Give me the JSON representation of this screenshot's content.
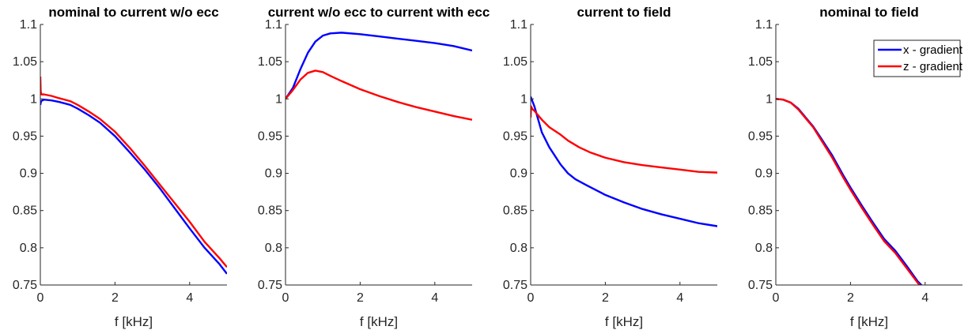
{
  "chart_data": [
    {
      "type": "line",
      "title": "nominal to current w/o ecc",
      "xlabel": "f [kHz]",
      "ylabel": "",
      "xlim": [
        0,
        5
      ],
      "ylim": [
        0.75,
        1.1
      ],
      "xticks": [
        0,
        2,
        4
      ],
      "yticks": [
        0.75,
        0.8,
        0.85,
        0.9,
        0.95,
        1,
        1.05,
        1.1
      ],
      "ytick_labels": [
        "0.75",
        "0.8",
        "0.85",
        "0.9",
        "0.95",
        "1",
        "1.05",
        "1.1"
      ],
      "series": [
        {
          "name": "x - gradient",
          "color": "#0000ff",
          "x": [
            0,
            0.02,
            0.1,
            0.3,
            0.5,
            0.8,
            1.0,
            1.3,
            1.6,
            2.0,
            2.4,
            2.8,
            3.2,
            3.6,
            4.0,
            4.4,
            4.8,
            5.0
          ],
          "y": [
            0.992,
            0.997,
            0.999,
            0.998,
            0.996,
            0.992,
            0.987,
            0.978,
            0.968,
            0.95,
            0.928,
            0.905,
            0.88,
            0.853,
            0.826,
            0.8,
            0.778,
            0.765
          ]
        },
        {
          "name": "z - gradient",
          "color": "#ff0000",
          "x": [
            0,
            0.01,
            0.03,
            0.1,
            0.3,
            0.5,
            0.8,
            1.0,
            1.3,
            1.6,
            2.0,
            2.4,
            2.8,
            3.2,
            3.6,
            4.0,
            4.4,
            4.8,
            5.0
          ],
          "y": [
            1.03,
            1.01,
            1.006,
            1.006,
            1.004,
            1.001,
            0.997,
            0.992,
            0.983,
            0.973,
            0.956,
            0.934,
            0.91,
            0.885,
            0.86,
            0.835,
            0.808,
            0.786,
            0.774
          ]
        }
      ]
    },
    {
      "type": "line",
      "title": "current w/o ecc to current with ecc",
      "xlabel": "f [kHz]",
      "ylabel": "",
      "xlim": [
        0,
        5
      ],
      "ylim": [
        0.75,
        1.1
      ],
      "xticks": [
        0,
        2,
        4
      ],
      "yticks": [
        0.75,
        0.8,
        0.85,
        0.9,
        0.95,
        1,
        1.05,
        1.1
      ],
      "ytick_labels": [
        "0.75",
        "0.8",
        "0.85",
        "0.9",
        "0.95",
        "1",
        "1.05",
        "1.1"
      ],
      "series": [
        {
          "name": "x - gradient",
          "color": "#0000ff",
          "x": [
            0,
            0.2,
            0.4,
            0.6,
            0.8,
            1.0,
            1.2,
            1.5,
            2.0,
            2.5,
            3.0,
            3.5,
            4.0,
            4.5,
            5.0
          ],
          "y": [
            1.0,
            1.015,
            1.04,
            1.062,
            1.077,
            1.085,
            1.088,
            1.089,
            1.087,
            1.084,
            1.081,
            1.078,
            1.075,
            1.071,
            1.065
          ]
        },
        {
          "name": "z - gradient",
          "color": "#ff0000",
          "x": [
            0,
            0.2,
            0.4,
            0.6,
            0.8,
            1.0,
            1.2,
            1.5,
            2.0,
            2.5,
            3.0,
            3.5,
            4.0,
            4.5,
            5.0
          ],
          "y": [
            1.0,
            1.012,
            1.026,
            1.035,
            1.038,
            1.036,
            1.031,
            1.024,
            1.013,
            1.004,
            0.996,
            0.989,
            0.983,
            0.977,
            0.972
          ]
        }
      ]
    },
    {
      "type": "line",
      "title": "current to field",
      "xlabel": "f [kHz]",
      "ylabel": "",
      "xlim": [
        0,
        5
      ],
      "ylim": [
        0.75,
        1.1
      ],
      "xticks": [
        0,
        2,
        4
      ],
      "yticks": [
        0.75,
        0.8,
        0.85,
        0.9,
        0.95,
        1,
        1.05,
        1.1
      ],
      "ytick_labels": [
        "0.75",
        "0.8",
        "0.85",
        "0.9",
        "0.95",
        "1",
        "1.05",
        "1.1"
      ],
      "series": [
        {
          "name": "x - gradient",
          "color": "#0000ff",
          "x": [
            0,
            0.1,
            0.3,
            0.5,
            0.8,
            1.0,
            1.2,
            1.5,
            2.0,
            2.5,
            3.0,
            3.5,
            4.0,
            4.5,
            5.0
          ],
          "y": [
            1.003,
            0.99,
            0.955,
            0.935,
            0.912,
            0.9,
            0.892,
            0.884,
            0.871,
            0.861,
            0.852,
            0.845,
            0.839,
            0.833,
            0.829
          ]
        },
        {
          "name": "z - gradient",
          "color": "#ff0000",
          "x": [
            0,
            0.01,
            0.05,
            0.1,
            0.3,
            0.5,
            0.8,
            1.0,
            1.3,
            1.6,
            2.0,
            2.5,
            3.0,
            3.5,
            4.0,
            4.5,
            5.0
          ],
          "y": [
            0.975,
            0.99,
            0.986,
            0.984,
            0.972,
            0.962,
            0.952,
            0.944,
            0.935,
            0.928,
            0.921,
            0.915,
            0.911,
            0.908,
            0.905,
            0.902,
            0.901
          ]
        }
      ]
    },
    {
      "type": "line",
      "title": "nominal to field",
      "xlabel": "f [kHz]",
      "ylabel": "",
      "xlim": [
        0,
        5
      ],
      "ylim": [
        0.75,
        1.1
      ],
      "xticks": [
        0,
        2,
        4
      ],
      "yticks": [
        0.75,
        0.8,
        0.85,
        0.9,
        0.95,
        1,
        1.05,
        1.1
      ],
      "ytick_labels": [
        "0.75",
        "0.8",
        "0.85",
        "0.9",
        "0.95",
        "1",
        "1.05",
        "1.1"
      ],
      "legend": {
        "entries": [
          "x - gradient",
          "z - gradient"
        ],
        "location": "top-right"
      },
      "series": [
        {
          "name": "x - gradient",
          "color": "#0000ff",
          "x": [
            0,
            0.2,
            0.4,
            0.6,
            0.8,
            1.0,
            1.2,
            1.5,
            1.8,
            2.0,
            2.3,
            2.6,
            2.9,
            3.2,
            3.5,
            3.8,
            3.9
          ],
          "y": [
            1.0,
            0.999,
            0.995,
            0.987,
            0.975,
            0.963,
            0.948,
            0.925,
            0.898,
            0.881,
            0.857,
            0.834,
            0.812,
            0.796,
            0.776,
            0.755,
            0.75
          ]
        },
        {
          "name": "z - gradient",
          "color": "#ff0000",
          "x": [
            0,
            0.2,
            0.4,
            0.6,
            0.8,
            1.0,
            1.2,
            1.5,
            1.8,
            2.0,
            2.3,
            2.6,
            2.9,
            3.2,
            3.5,
            3.8,
            3.85
          ],
          "y": [
            1.0,
            0.999,
            0.995,
            0.986,
            0.974,
            0.962,
            0.946,
            0.922,
            0.895,
            0.878,
            0.854,
            0.831,
            0.809,
            0.793,
            0.773,
            0.753,
            0.75
          ]
        }
      ]
    }
  ]
}
